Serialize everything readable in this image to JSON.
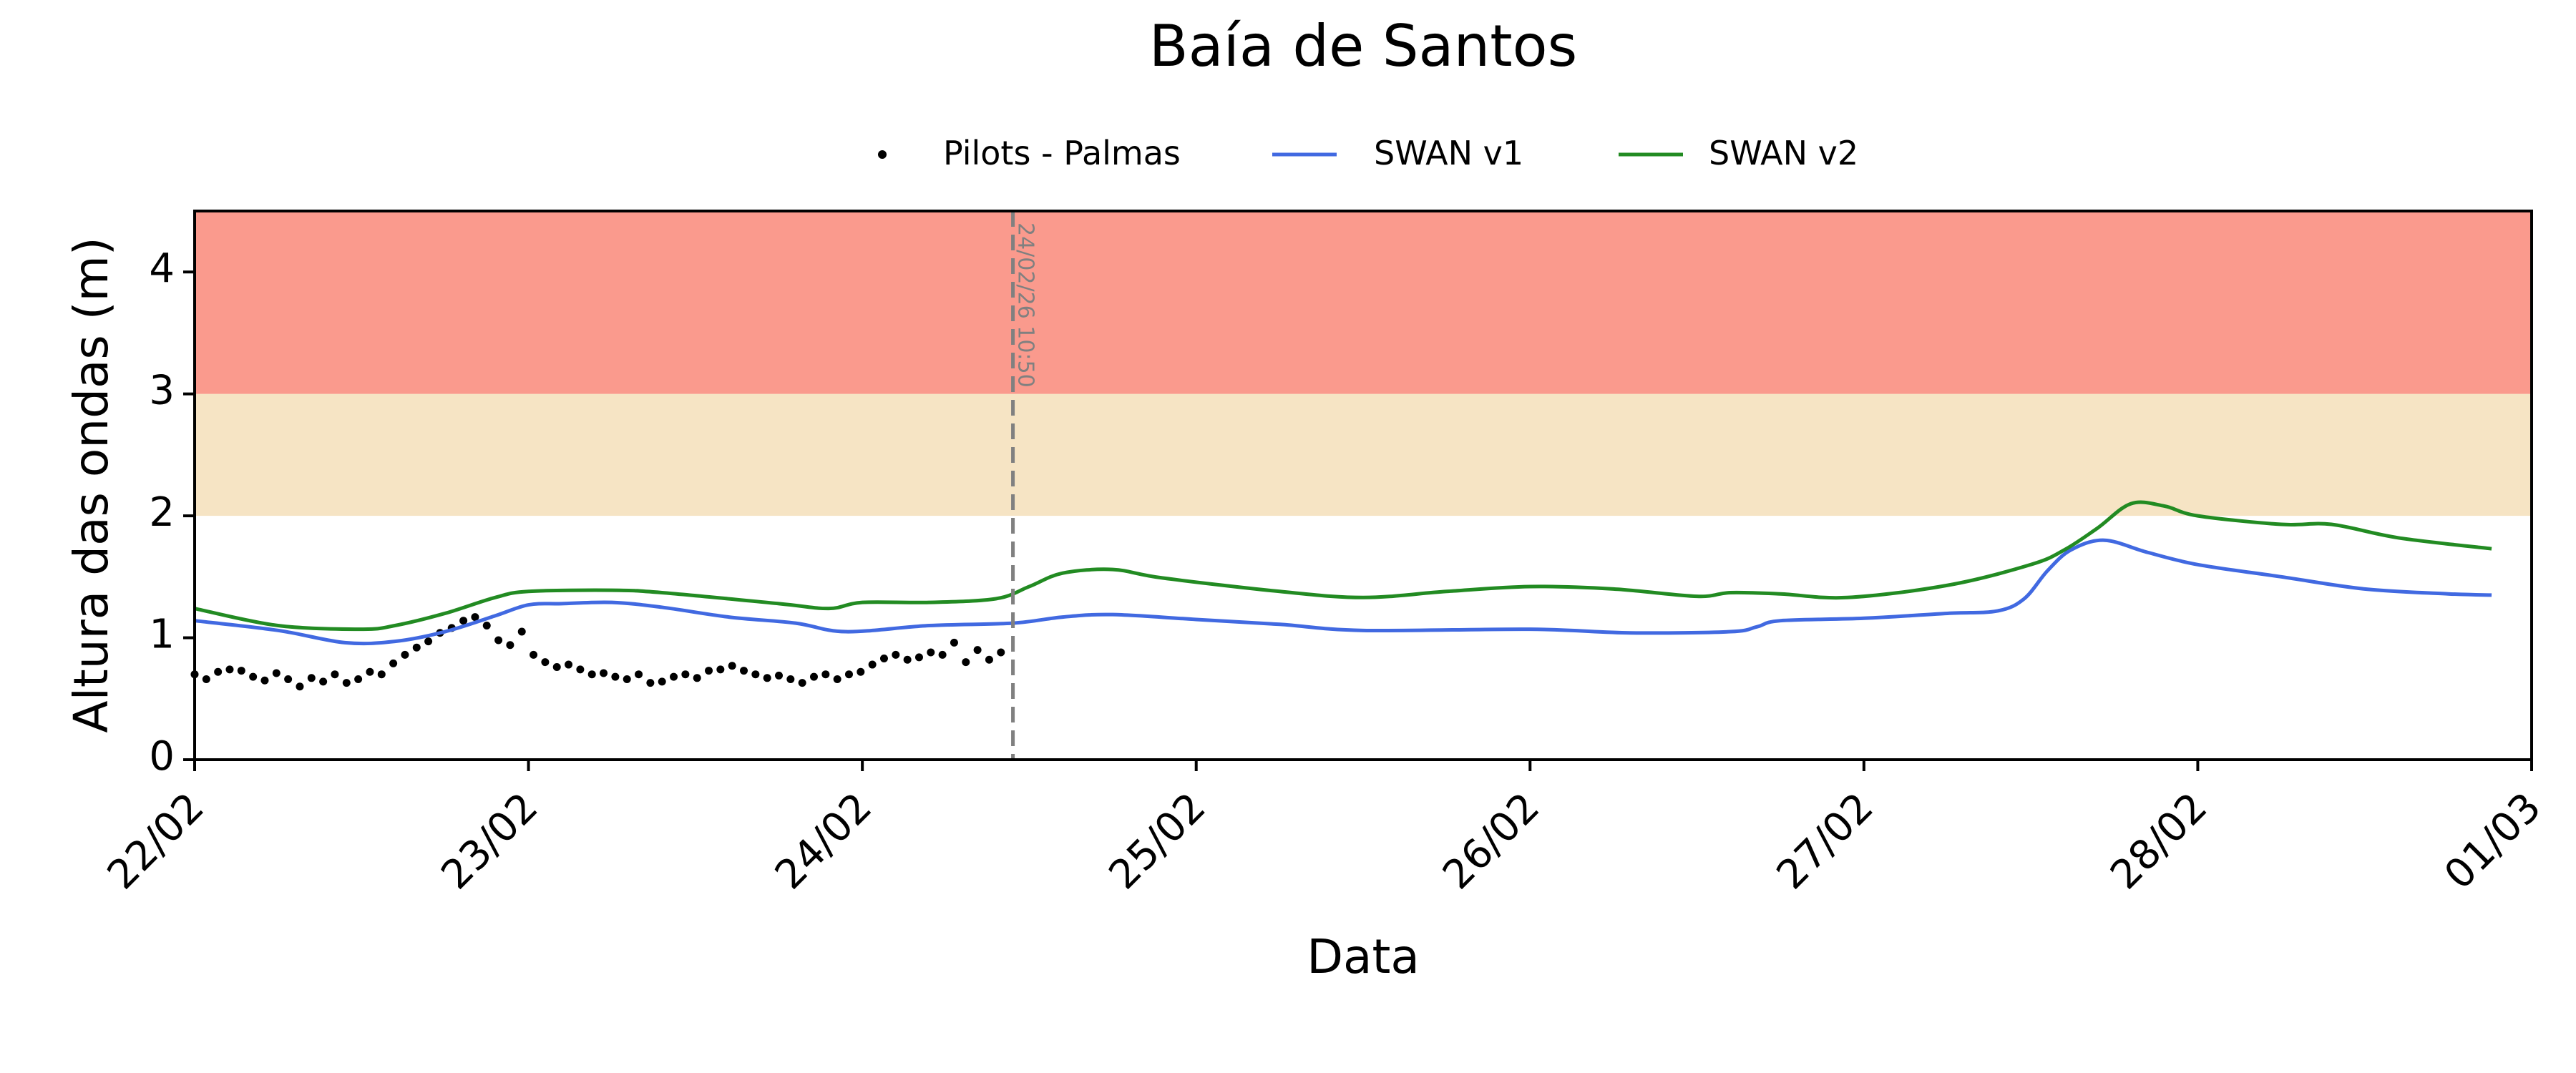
{
  "chart_data": {
    "type": "line",
    "title": "Baía de Santos",
    "xlabel": "Data",
    "ylabel": "Altura das ondas (m)",
    "xlim": [
      0,
      7
    ],
    "ylim": [
      0,
      4.5
    ],
    "x_unit": "days since 22/02",
    "xtick_labels": [
      "22/02",
      "23/02",
      "24/02",
      "25/02",
      "26/02",
      "27/02",
      "28/02",
      "01/03"
    ],
    "ytick_labels": [
      "0",
      "1",
      "2",
      "3",
      "4"
    ],
    "legend": {
      "placement": "top-center",
      "entries": [
        "Pilots - Palmas",
        "SWAN v1",
        "SWAN v2"
      ]
    },
    "bands": [
      {
        "from": 2,
        "to": 3,
        "color": "#f6e4c4"
      },
      {
        "from": 3,
        "to": 4.5,
        "color": "#fa9a8d"
      }
    ],
    "vline": {
      "x": 2.451,
      "label": "24/02/26 10:50",
      "color": "#808080"
    },
    "series": [
      {
        "name": "Pilots - Palmas",
        "type": "scatter",
        "color": "#000000",
        "x_step": 0.035,
        "values": [
          0.7,
          0.66,
          0.72,
          0.74,
          0.73,
          0.68,
          0.65,
          0.71,
          0.66,
          0.6,
          0.67,
          0.64,
          0.7,
          0.63,
          0.66,
          0.72,
          0.7,
          0.79,
          0.86,
          0.92,
          0.97,
          1.04,
          1.08,
          1.14,
          1.17,
          1.1,
          0.98,
          0.94,
          1.05,
          0.86,
          0.8,
          0.76,
          0.78,
          0.74,
          0.7,
          0.71,
          0.68,
          0.66,
          0.7,
          0.63,
          0.64,
          0.68,
          0.7,
          0.67,
          0.73,
          0.74,
          0.77,
          0.73,
          0.7,
          0.67,
          0.69,
          0.66,
          0.63,
          0.68,
          0.7,
          0.66,
          0.7,
          0.72,
          0.78,
          0.83,
          0.86,
          0.82,
          0.84,
          0.88,
          0.86,
          0.96,
          0.8,
          0.9,
          0.82,
          0.88
        ]
      },
      {
        "name": "SWAN v1",
        "type": "line",
        "color": "#4169e1",
        "x": [
          0,
          0.25,
          0.45,
          0.6,
          0.75,
          0.9,
          1.0,
          1.1,
          1.25,
          1.4,
          1.6,
          1.8,
          1.95,
          2.2,
          2.45,
          2.6,
          2.75,
          3.0,
          3.25,
          3.5,
          4.0,
          4.3,
          4.6,
          4.68,
          4.75,
          5.0,
          5.25,
          5.4,
          5.48,
          5.55,
          5.62,
          5.72,
          5.85,
          6.0,
          6.25,
          6.5,
          6.75,
          6.88
        ],
        "y": [
          1.14,
          1.06,
          0.96,
          0.97,
          1.05,
          1.18,
          1.27,
          1.28,
          1.29,
          1.25,
          1.17,
          1.12,
          1.05,
          1.1,
          1.12,
          1.17,
          1.19,
          1.15,
          1.11,
          1.06,
          1.07,
          1.04,
          1.05,
          1.09,
          1.14,
          1.16,
          1.2,
          1.22,
          1.32,
          1.55,
          1.72,
          1.8,
          1.7,
          1.6,
          1.5,
          1.4,
          1.36,
          1.35
        ]
      },
      {
        "name": "SWAN v2",
        "type": "line",
        "color": "#228b22",
        "x": [
          0,
          0.25,
          0.5,
          0.6,
          0.75,
          0.9,
          1.0,
          1.25,
          1.4,
          1.75,
          1.9,
          2.0,
          2.2,
          2.4,
          2.5,
          2.6,
          2.75,
          2.9,
          3.25,
          3.5,
          3.75,
          4.0,
          4.25,
          4.5,
          4.6,
          4.75,
          4.95,
          5.25,
          5.5,
          5.6,
          5.7,
          5.8,
          5.9,
          6.0,
          6.25,
          6.4,
          6.6,
          6.88
        ],
        "y": [
          1.24,
          1.1,
          1.07,
          1.1,
          1.2,
          1.33,
          1.38,
          1.39,
          1.37,
          1.28,
          1.24,
          1.29,
          1.29,
          1.32,
          1.42,
          1.53,
          1.56,
          1.49,
          1.38,
          1.33,
          1.38,
          1.42,
          1.4,
          1.34,
          1.37,
          1.36,
          1.33,
          1.43,
          1.6,
          1.72,
          1.9,
          2.1,
          2.08,
          2.0,
          1.93,
          1.93,
          1.82,
          1.73
        ]
      }
    ]
  }
}
